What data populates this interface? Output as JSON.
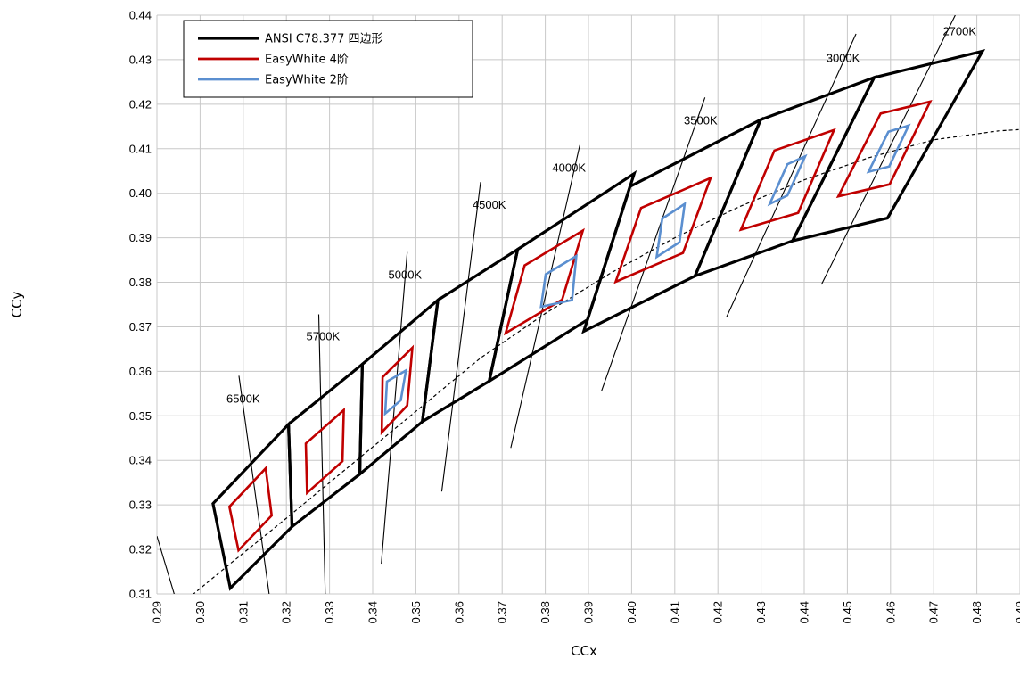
{
  "chart_data": {
    "type": "line",
    "xlabel": "CCx",
    "ylabel": "CCy",
    "xlim": [
      0.29,
      0.49
    ],
    "ylim": [
      0.31,
      0.44
    ],
    "xticks": [
      "0.29",
      "0.30",
      "0.31",
      "0.32",
      "0.33",
      "0.34",
      "0.35",
      "0.36",
      "0.37",
      "0.38",
      "0.39",
      "0.40",
      "0.41",
      "0.42",
      "0.43",
      "0.44",
      "0.45",
      "0.46",
      "0.47",
      "0.48",
      "0.49"
    ],
    "yticks": [
      "0.31",
      "0.32",
      "0.33",
      "0.34",
      "0.35",
      "0.36",
      "0.37",
      "0.38",
      "0.39",
      "0.40",
      "0.41",
      "0.42",
      "0.43",
      "0.44"
    ],
    "grid": true,
    "legend": {
      "position": "top-left",
      "entries": [
        {
          "label": "ANSI C78.377 四边形",
          "color": "#000000"
        },
        {
          "label": "EasyWhite 4阶",
          "color": "#c00000"
        },
        {
          "label": "EasyWhite 2阶",
          "color": "#5b8fd0"
        }
      ]
    },
    "colors": {
      "ansi": "#000000",
      "step4": "#c00000",
      "step2": "#5b8fd0",
      "grid": "#c8c8c8"
    },
    "cct_labels": [
      {
        "text": "6500K",
        "x": 0.31,
        "y": 0.353
      },
      {
        "text": "5700K",
        "x": 0.3285,
        "y": 0.367
      },
      {
        "text": "5000K",
        "x": 0.3475,
        "y": 0.3808
      },
      {
        "text": "4500K",
        "x": 0.367,
        "y": 0.3965
      },
      {
        "text": "4000K",
        "x": 0.3855,
        "y": 0.4048
      },
      {
        "text": "3500K",
        "x": 0.416,
        "y": 0.4155
      },
      {
        "text": "3000K",
        "x": 0.449,
        "y": 0.4295
      },
      {
        "text": "2700K",
        "x": 0.476,
        "y": 0.4355
      }
    ],
    "isotherm_lines": [
      [
        [
          0.29,
          0.323
        ],
        [
          0.294,
          0.31
        ]
      ],
      [
        [
          0.309,
          0.359
        ],
        [
          0.316,
          0.31
        ]
      ],
      [
        [
          0.3275,
          0.3728
        ],
        [
          0.329,
          0.31
        ]
      ],
      [
        [
          0.342,
          0.3168
        ],
        [
          0.348,
          0.3868
        ]
      ],
      [
        [
          0.356,
          0.333
        ],
        [
          0.365,
          0.4025
        ]
      ],
      [
        [
          0.372,
          0.3428
        ],
        [
          0.388,
          0.4108
        ]
      ],
      [
        [
          0.393,
          0.3555
        ],
        [
          0.417,
          0.4215
        ]
      ],
      [
        [
          0.422,
          0.3722
        ],
        [
          0.452,
          0.4358
        ]
      ],
      [
        [
          0.444,
          0.3795
        ],
        [
          0.475,
          0.44
        ]
      ]
    ],
    "planckian_locus": [
      [
        0.296,
        0.308
      ],
      [
        0.306,
        0.316
      ],
      [
        0.32,
        0.327
      ],
      [
        0.335,
        0.339
      ],
      [
        0.35,
        0.351
      ],
      [
        0.365,
        0.363
      ],
      [
        0.38,
        0.373
      ],
      [
        0.395,
        0.382
      ],
      [
        0.41,
        0.39
      ],
      [
        0.425,
        0.397
      ],
      [
        0.44,
        0.403
      ],
      [
        0.455,
        0.408
      ],
      [
        0.47,
        0.412
      ],
      [
        0.485,
        0.414
      ],
      [
        0.49,
        0.4143
      ]
    ],
    "series": [
      {
        "name": "ANSI C78.377 四边形",
        "polygons": [
          [
            [
              0.303,
              0.3303
            ],
            [
              0.3205,
              0.3481
            ],
            [
              0.3213,
              0.3251
            ],
            [
              0.307,
              0.3113
            ]
          ],
          [
            [
              0.3213,
              0.3251
            ],
            [
              0.3205,
              0.3481
            ],
            [
              0.3376,
              0.3616
            ],
            [
              0.337,
              0.3369
            ]
          ],
          [
            [
              0.337,
              0.3369
            ],
            [
              0.3376,
              0.3616
            ],
            [
              0.3551,
              0.376
            ],
            [
              0.3515,
              0.3487
            ]
          ],
          [
            [
              0.3515,
              0.3487
            ],
            [
              0.3551,
              0.376
            ],
            [
              0.3736,
              0.3874
            ],
            [
              0.367,
              0.3578
            ]
          ],
          [
            [
              0.367,
              0.3578
            ],
            [
              0.3736,
              0.3874
            ],
            [
              0.4006,
              0.4044
            ],
            [
              0.3898,
              0.3716
            ]
          ],
          [
            [
              0.3996,
              0.4015
            ],
            [
              0.4299,
              0.4165
            ],
            [
              0.4147,
              0.3814
            ],
            [
              0.3889,
              0.369
            ]
          ],
          [
            [
              0.4299,
              0.4165
            ],
            [
              0.4562,
              0.426
            ],
            [
              0.4373,
              0.3893
            ],
            [
              0.4147,
              0.3814
            ]
          ],
          [
            [
              0.4562,
              0.426
            ],
            [
              0.4813,
              0.4319
            ],
            [
              0.4593,
              0.3944
            ],
            [
              0.4373,
              0.3893
            ]
          ]
        ]
      },
      {
        "name": "EasyWhite 4阶",
        "polygons": [
          [
            [
              0.3068,
              0.3296
            ],
            [
              0.3152,
              0.3382
            ],
            [
              0.3166,
              0.3276
            ],
            [
              0.3089,
              0.3198
            ]
          ],
          [
            [
              0.3245,
              0.3438
            ],
            [
              0.3333,
              0.3513
            ],
            [
              0.333,
              0.3398
            ],
            [
              0.3248,
              0.3327
            ]
          ],
          [
            [
              0.3423,
              0.3587
            ],
            [
              0.3492,
              0.3653
            ],
            [
              0.348,
              0.3523
            ],
            [
              0.3421,
              0.3463
            ]
          ],
          [
            [
              0.3752,
              0.3838
            ],
            [
              0.3887,
              0.3916
            ],
            [
              0.3839,
              0.3761
            ],
            [
              0.3708,
              0.3686
            ]
          ],
          [
            [
              0.4022,
              0.3967
            ],
            [
              0.4183,
              0.4034
            ],
            [
              0.4119,
              0.3866
            ],
            [
              0.3963,
              0.3801
            ]
          ],
          [
            [
              0.4331,
              0.4096
            ],
            [
              0.4469,
              0.4142
            ],
            [
              0.4386,
              0.3956
            ],
            [
              0.4253,
              0.3918
            ]
          ],
          [
            [
              0.4577,
              0.4179
            ],
            [
              0.4692,
              0.4206
            ],
            [
              0.4598,
              0.402
            ],
            [
              0.4479,
              0.3993
            ]
          ]
        ]
      },
      {
        "name": "EasyWhite 2阶",
        "polygons": [
          [
            [
              0.3433,
              0.3577
            ],
            [
              0.3477,
              0.3602
            ],
            [
              0.3465,
              0.3535
            ],
            [
              0.3429,
              0.3505
            ]
          ],
          [
            [
              0.3801,
              0.3818
            ],
            [
              0.3872,
              0.3859
            ],
            [
              0.3862,
              0.376
            ],
            [
              0.379,
              0.3745
            ]
          ],
          [
            [
              0.4071,
              0.3943
            ],
            [
              0.4123,
              0.3976
            ],
            [
              0.4111,
              0.389
            ],
            [
              0.4058,
              0.3857
            ]
          ],
          [
            [
              0.4361,
              0.4065
            ],
            [
              0.4402,
              0.4083
            ],
            [
              0.4361,
              0.3995
            ],
            [
              0.432,
              0.3976
            ]
          ],
          [
            [
              0.4595,
              0.4138
            ],
            [
              0.4642,
              0.4152
            ],
            [
              0.4597,
              0.406
            ],
            [
              0.4549,
              0.4048
            ]
          ]
        ]
      }
    ]
  }
}
